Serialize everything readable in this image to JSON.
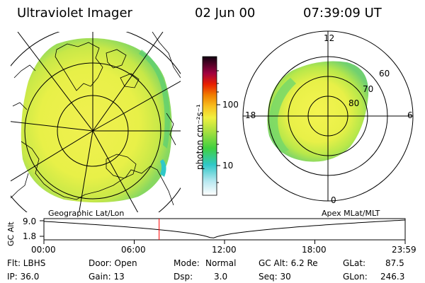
{
  "header": {
    "instrument": "Ultraviolet Imager",
    "date": "02 Jun 00",
    "time": "07:39:09 UT"
  },
  "colorbar": {
    "unit_label": "photon cm⁻²s⁻¹",
    "ticks": [
      "100",
      "10"
    ],
    "scale": "log"
  },
  "geo_panel": {
    "label": "Geographic Lat/Lon"
  },
  "polar_panel": {
    "label": "Apex MLat/MLT",
    "mlt_labels": {
      "top": "12",
      "left": "18",
      "right": "6",
      "bottom": "0"
    },
    "lat_labels": [
      "60",
      "70",
      "80"
    ]
  },
  "altitude_plot": {
    "ylabel": "GC Alt",
    "yticks": [
      "9.0",
      "1.8"
    ],
    "xticks": [
      "00:00",
      "06:00",
      "12:00",
      "18:00",
      "23:59"
    ],
    "current_time_fraction": 0.3189,
    "perigee_time_fraction": 0.466
  },
  "info": {
    "flt": "Flt: LBHS",
    "ip": "IP: 36.0",
    "door": "Door: Open",
    "gain": "Gain: 13",
    "mode_label": "Mode:",
    "mode_value": "Normal",
    "dsp_label": "Dsp:",
    "dsp_value": "3.0",
    "gc_alt": "GC Alt: 6.2 Re",
    "seq": "Seq: 30",
    "glat_label": "GLat:",
    "glat_value": "87.5",
    "glon_label": "GLon:",
    "glon_value": "246.3"
  },
  "colors": {
    "aurora_outer": "#7ad36a",
    "aurora_mid": "#b8e84a",
    "aurora_inner": "#eef24c",
    "time_marker": "#ff0000"
  }
}
